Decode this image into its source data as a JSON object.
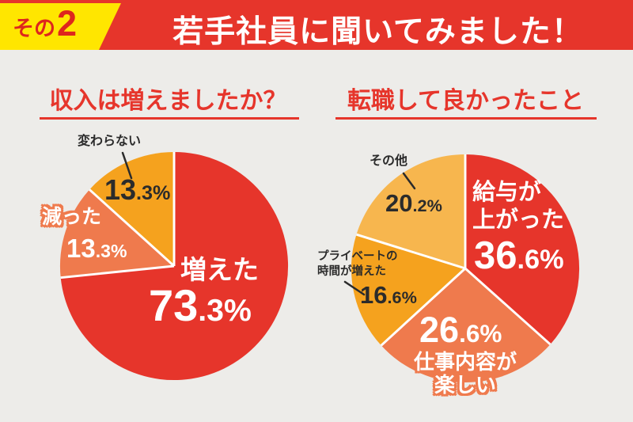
{
  "background_color": "#edece9",
  "accent_red": "#e6352b",
  "header": {
    "badge_prefix": "その",
    "badge_number": "2",
    "badge_bg": "#ffe600",
    "badge_text_color": "#de261d",
    "bar_color": "#e6352b",
    "title": "若手社員に聞いてみました！",
    "title_color": "#ffffff"
  },
  "chart_data": [
    {
      "type": "pie",
      "title": "収入は増えましたか？",
      "labels": [
        "増えた",
        "減った",
        "変わらない"
      ],
      "values": [
        73.3,
        13.3,
        13.3
      ],
      "unit": "%",
      "value_labels": [
        "73.3%",
        "13.3%",
        "13.3%"
      ],
      "pct_parts": [
        [
          "73",
          ".3%"
        ],
        [
          "13",
          ".3%"
        ],
        [
          "13",
          ".3%"
        ]
      ],
      "colors": [
        "#e6352b",
        "#ef7a4d",
        "#f5a21e"
      ],
      "start_angle": "top",
      "direction": "clockwise",
      "legend": "none"
    },
    {
      "type": "pie",
      "title": "転職して良かったこと",
      "labels": [
        "給与が上がった",
        "仕事内容が楽しい",
        "プライベートの時間が増えた",
        "その他"
      ],
      "labels_display": [
        [
          "給与が",
          "上がった"
        ],
        [
          "仕事内容が",
          "楽しい"
        ],
        [
          "プライベートの",
          "時間が増えた"
        ],
        [
          "その他"
        ]
      ],
      "values": [
        36.6,
        26.6,
        16.6,
        20.2
      ],
      "unit": "%",
      "value_labels": [
        "36.6%",
        "26.6%",
        "16.6%",
        "20.2%"
      ],
      "pct_parts": [
        [
          "36",
          ".6%"
        ],
        [
          "26",
          ".6%"
        ],
        [
          "16",
          ".6%"
        ],
        [
          "20",
          ".2%"
        ]
      ],
      "colors": [
        "#e6352b",
        "#ef7a4d",
        "#f5a21e",
        "#f7b64e"
      ],
      "start_angle": "top",
      "direction": "clockwise",
      "legend": "none"
    }
  ]
}
